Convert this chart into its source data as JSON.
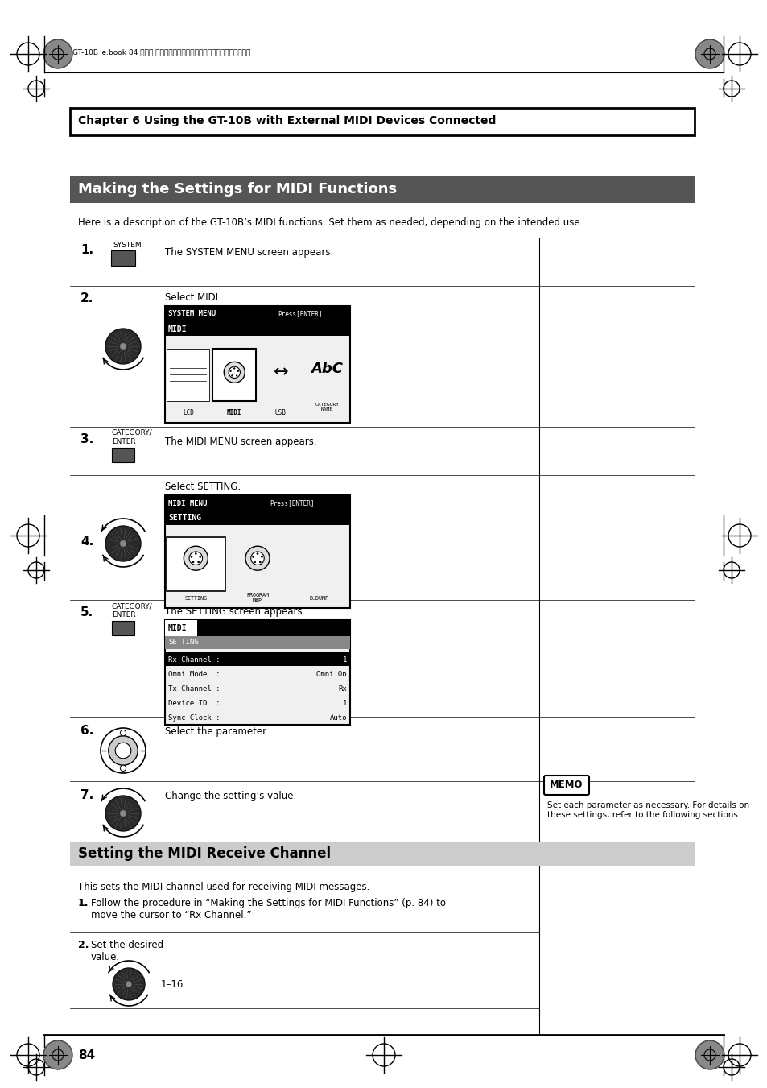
{
  "page_bg": "#ffffff",
  "header_text": "GT-10B_e.book 84 ページ ２００８年２月２６日　火曜日　午後３時３０分",
  "chapter_box_text": "Chapter 6 Using the GT-10B with External MIDI Devices Connected",
  "section1_title": "Making the Settings for MIDI Functions",
  "section1_desc": "Here is a description of the GT-10B’s MIDI functions. Set them as needed, depending on the intended use.",
  "step1_num": "1.",
  "step1_label": "SYSTEM",
  "step1_text": "The SYSTEM MENU screen appears.",
  "step2_num": "2.",
  "step2_pre": "Select MIDI.",
  "step3_num": "3.",
  "step3_label": "CATEGORY/\nENTER",
  "step3_text": "The MIDI MENU screen appears.",
  "step4_num": "4.",
  "step4_pre": "Select SETTING.",
  "step5_num": "5.",
  "step5_label": "CATEGORY/\nENTER",
  "step5_pre": "The SETTING screen appears.",
  "step6_num": "6.",
  "step6_text": "Select the parameter.",
  "step7_num": "7.",
  "step7_text": "Change the setting’s value.",
  "memo_title": "MEMO",
  "memo_text": "Set each parameter as necessary. For details on\nthese settings, refer to the following sections.",
  "section2_title": "Setting the MIDI Receive Channel",
  "section2_desc": "This sets the MIDI channel used for receiving MIDI messages.",
  "s2_step1_num": "1.",
  "s2_step1_text": "Follow the procedure in “Making the Settings for MIDI Functions” (p. 84) to\nmove the cursor to “Rx Channel.”",
  "s2_step2_num": "2.",
  "s2_step2_text": "Set the desired\nvalue.",
  "s2_step2_range": "1–16",
  "page_num": "84",
  "section1_bg": "#555555",
  "section2_bg": "#cccccc"
}
